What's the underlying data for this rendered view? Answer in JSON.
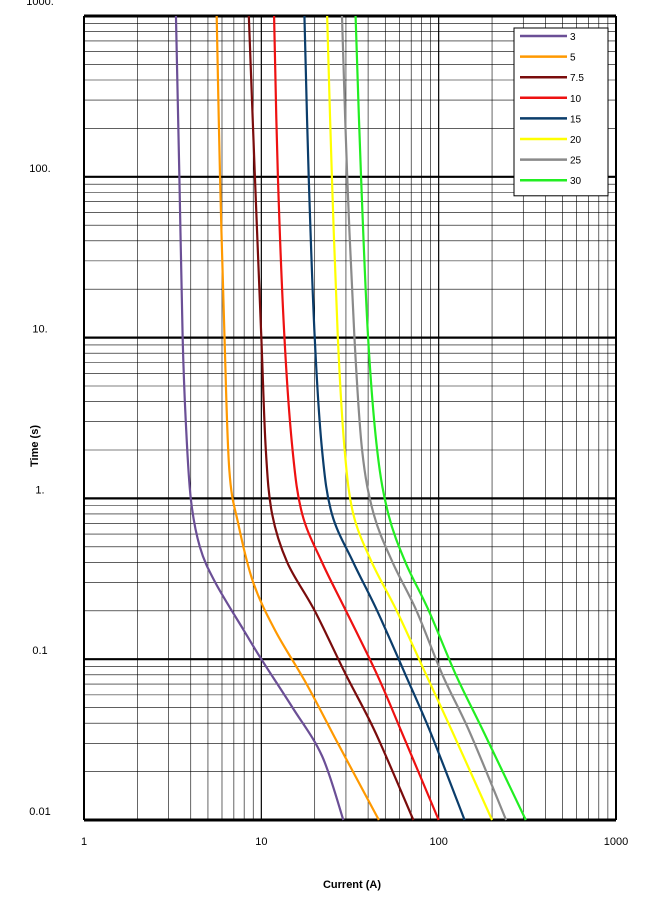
{
  "chart_data": {
    "type": "line",
    "xlabel": "Current (A)",
    "ylabel": "Time (s)",
    "xscale": "log",
    "yscale": "log",
    "xlim": [
      1,
      1000
    ],
    "ylim": [
      0.01,
      1000
    ],
    "grid": true,
    "legend_position": "top-right",
    "x_tick_labels": [
      "1",
      "10",
      "100",
      "1000"
    ],
    "y_tick_labels": [
      "1000.",
      "100.",
      "10.",
      "1.",
      "0.1",
      "0.01"
    ],
    "series": [
      {
        "name": "3",
        "color": "#6b4f96",
        "x": [
          3.3,
          3.45,
          3.6,
          3.75,
          4.0,
          4.5,
          5.5,
          8.0,
          10.0,
          15.0,
          22.0,
          29.0
        ],
        "y": [
          1000,
          100,
          10,
          3,
          1,
          0.5,
          0.3,
          0.15,
          0.1,
          0.05,
          0.025,
          0.01
        ]
      },
      {
        "name": "5",
        "color": "#ff9900",
        "x": [
          5.6,
          5.85,
          6.2,
          6.6,
          7.4,
          9.0,
          12.0,
          18.0,
          27.0,
          46.0
        ],
        "y": [
          1000,
          100,
          10,
          1.5,
          0.7,
          0.3,
          0.15,
          0.07,
          0.03,
          0.01
        ]
      },
      {
        "name": "7.5",
        "color": "#7a0c0c",
        "x": [
          8.5,
          9.2,
          10.0,
          10.6,
          11.5,
          14.0,
          20.0,
          30.0,
          44.0,
          72.0
        ],
        "y": [
          1000,
          100,
          10,
          2,
          0.8,
          0.4,
          0.2,
          0.08,
          0.035,
          0.01
        ]
      },
      {
        "name": "10",
        "color": "#ee1111",
        "x": [
          11.8,
          12.4,
          13.5,
          15.0,
          17.0,
          22.0,
          30.0,
          45.0,
          62.0,
          100.0
        ],
        "y": [
          1000,
          100,
          10,
          2,
          0.8,
          0.4,
          0.2,
          0.08,
          0.035,
          0.01
        ]
      },
      {
        "name": "15",
        "color": "#0b3d6b",
        "x": [
          17.5,
          18.5,
          20.0,
          22.0,
          25.0,
          33.0,
          45.0,
          65.0,
          90.0,
          140.0
        ],
        "y": [
          1000,
          100,
          10,
          2,
          0.8,
          0.4,
          0.2,
          0.08,
          0.035,
          0.01
        ]
      },
      {
        "name": "20",
        "color": "#ffff00",
        "x": [
          23.5,
          25.0,
          27.0,
          29.5,
          33.0,
          42.0,
          58.0,
          85.0,
          120.0,
          200.0
        ],
        "y": [
          1000,
          100,
          10,
          2,
          0.8,
          0.4,
          0.2,
          0.08,
          0.035,
          0.01
        ]
      },
      {
        "name": "25",
        "color": "#8a8a8a",
        "x": [
          28.5,
          30.5,
          33.5,
          37.0,
          43.0,
          55.0,
          75.0,
          105.0,
          150.0,
          240.0
        ],
        "y": [
          1000,
          100,
          10,
          2,
          0.8,
          0.4,
          0.2,
          0.08,
          0.035,
          0.01
        ]
      },
      {
        "name": "30",
        "color": "#22ee22",
        "x": [
          34.0,
          36.5,
          40.0,
          45.0,
          52.0,
          65.0,
          88.0,
          125.0,
          180.0,
          310.0
        ],
        "y": [
          1000,
          100,
          10,
          2,
          0.8,
          0.4,
          0.2,
          0.08,
          0.035,
          0.01
        ]
      }
    ]
  }
}
